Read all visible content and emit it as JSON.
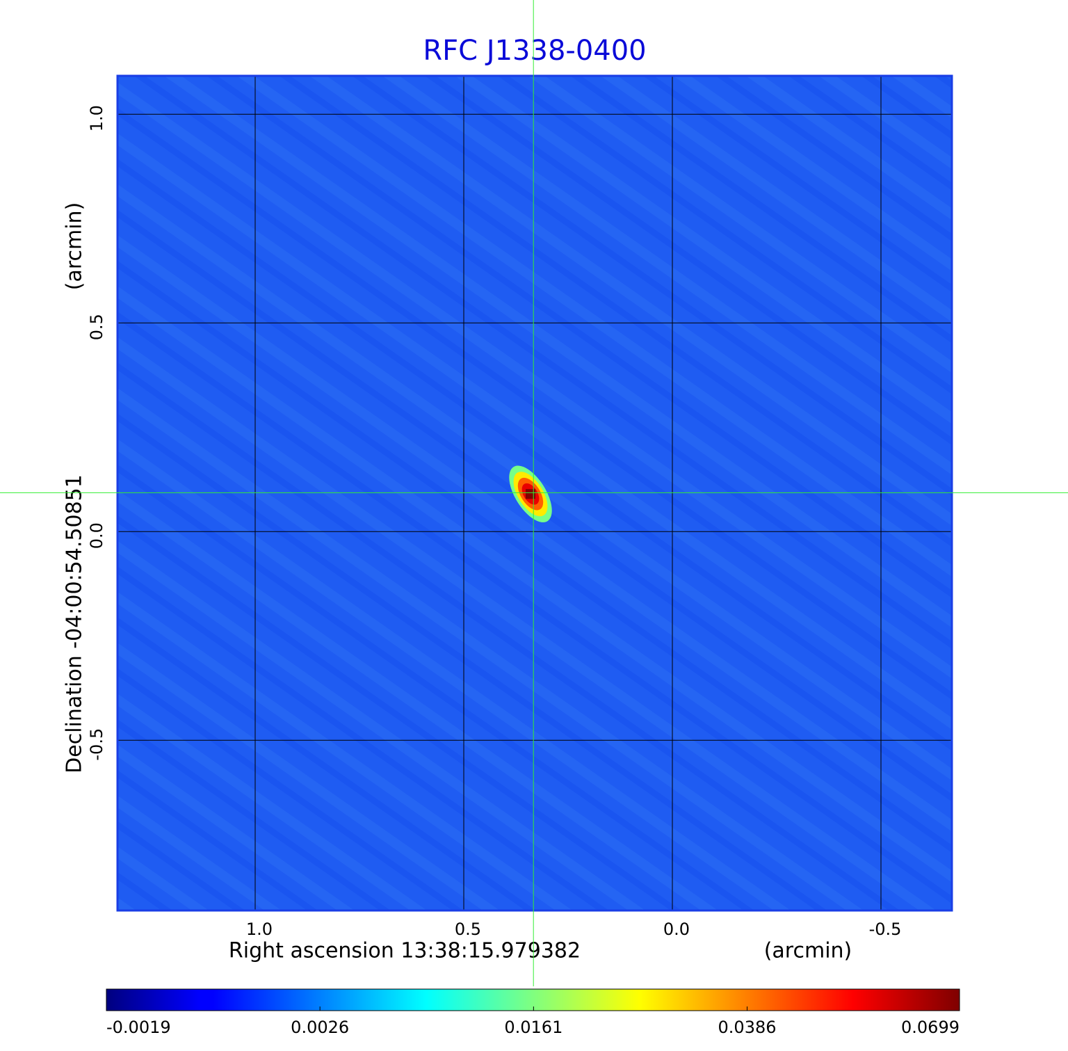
{
  "chart_data": {
    "type": "image",
    "title": "RFC J1338-0400",
    "x_label": "Right ascension  13:38:15.979382",
    "x_unit": "(arcmin)",
    "y_label": "Declination  -04:00:54.50851",
    "y_unit": "(arcmin)",
    "xlim": [
      1.33,
      -0.67
    ],
    "ylim": [
      -0.908,
      1.092
    ],
    "xticks": [
      {
        "value": 1,
        "label": "1.0"
      },
      0.5,
      {
        "value": 0,
        "label": "0.0"
      },
      -0.5
    ],
    "yticks": [
      -0.5,
      {
        "value": 0,
        "label": "0.0"
      },
      0.5,
      {
        "value": 1,
        "label": "1.0"
      }
    ],
    "grid": true,
    "colormap": "jet",
    "stretch": "sqrt",
    "clim": [
      -0.0019,
      0.0699
    ],
    "cticks": [
      -0.0019,
      0.0026,
      0.0161,
      0.0386,
      0.0699
    ],
    "crosshair": {
      "x": 0.333,
      "y": 0.093,
      "color": "#33ee33"
    },
    "source": {
      "x": 0.34,
      "y": 0.09,
      "peak": 0.0699
    }
  }
}
